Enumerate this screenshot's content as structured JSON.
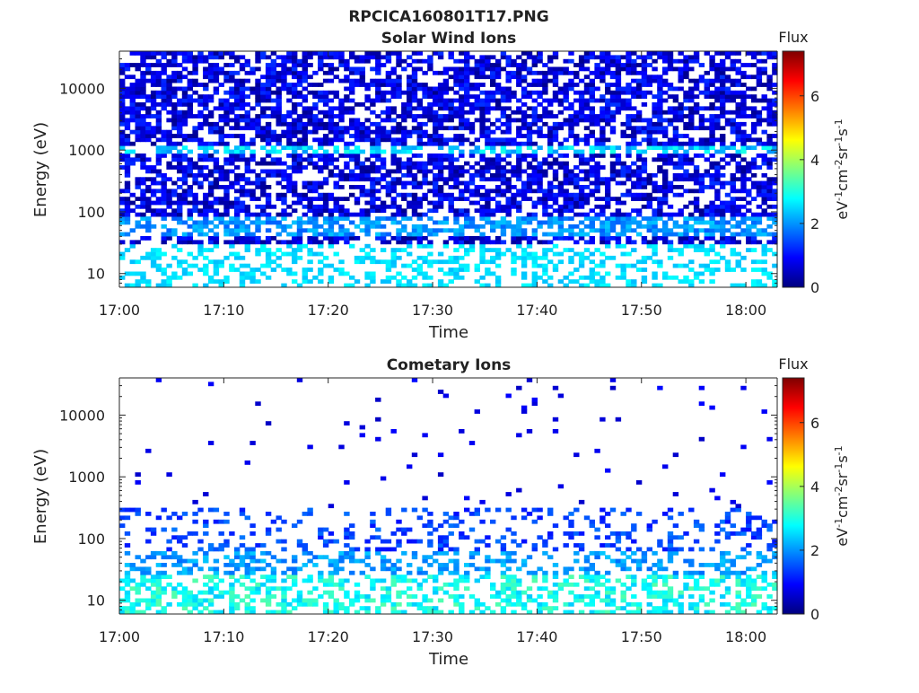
{
  "figure": {
    "title": "RPCICA160801T17.PNG"
  },
  "colormap": [
    "#00007f",
    "#0000ff",
    "#007fff",
    "#00ffff",
    "#7fff7f",
    "#ffff00",
    "#ff7f00",
    "#ff0000",
    "#7f0000"
  ],
  "chart_data": [
    {
      "type": "heatmap",
      "title": "Solar Wind Ions",
      "xlabel": "Time",
      "ylabel": "Energy (eV)",
      "x_range": [
        "17:00",
        "18:03"
      ],
      "x_ticks": [
        "17:00",
        "17:10",
        "17:20",
        "17:30",
        "17:40",
        "17:50",
        "18:00"
      ],
      "y_scale": "log",
      "y_range": [
        6,
        40000
      ],
      "y_ticks": [
        10,
        100,
        1000,
        10000
      ],
      "y_tick_labels": [
        "10",
        "100",
        "1000",
        "10000"
      ],
      "colorbar": {
        "label": "Flux",
        "unit_base": [
          "eV",
          "cm",
          "sr",
          "s"
        ],
        "unit_exp": [
          "-1",
          "-2",
          "-1",
          "-1"
        ],
        "range": [
          0,
          7.4
        ],
        "ticks": [
          0,
          2,
          4,
          6
        ],
        "tick_labels": [
          "0",
          "2",
          "4",
          "6"
        ]
      },
      "bands": [
        {
          "e_min": 6,
          "e_max": 40000,
          "fill_prob": 0.62,
          "level_min": 0.1,
          "level_max": 1.3
        },
        {
          "e_min": 900,
          "e_max": 1100,
          "fill_prob": 0.55,
          "level_min": 2.0,
          "level_max": 3.0
        },
        {
          "e_min": 40,
          "e_max": 90,
          "fill_prob": 0.6,
          "level_min": 1.6,
          "level_max": 2.4
        },
        {
          "e_min": 6,
          "e_max": 30,
          "fill_prob": 0.35,
          "level_min": 2.3,
          "level_max": 2.8
        }
      ]
    },
    {
      "type": "heatmap",
      "title": "Cometary Ions",
      "xlabel": "Time",
      "ylabel": "Energy (eV)",
      "x_range": [
        "17:00",
        "18:03"
      ],
      "x_ticks": [
        "17:00",
        "17:10",
        "17:20",
        "17:30",
        "17:40",
        "17:50",
        "18:00"
      ],
      "y_scale": "log",
      "y_range": [
        6,
        40000
      ],
      "y_ticks": [
        10,
        100,
        1000,
        10000
      ],
      "y_tick_labels": [
        "10",
        "100",
        "1000",
        "10000"
      ],
      "colorbar": {
        "label": "Flux",
        "unit_base": [
          "eV",
          "cm",
          "sr",
          "s"
        ],
        "unit_exp": [
          "-1",
          "-2",
          "-1",
          "-1"
        ],
        "range": [
          0,
          7.4
        ],
        "ticks": [
          0,
          2,
          4,
          6
        ],
        "tick_labels": [
          "0",
          "2",
          "4",
          "6"
        ]
      },
      "bands": [
        {
          "e_min": 300,
          "e_max": 40000,
          "fill_prob": 0.018,
          "level_min": 0.5,
          "level_max": 1.0
        },
        {
          "e_min": 60,
          "e_max": 300,
          "fill_prob": 0.22,
          "level_min": 1.0,
          "level_max": 1.8
        },
        {
          "e_min": 25,
          "e_max": 60,
          "fill_prob": 0.38,
          "level_min": 1.7,
          "level_max": 2.4
        },
        {
          "e_min": 6,
          "e_max": 25,
          "fill_prob": 0.45,
          "level_min": 2.4,
          "level_max": 3.4
        }
      ]
    }
  ]
}
